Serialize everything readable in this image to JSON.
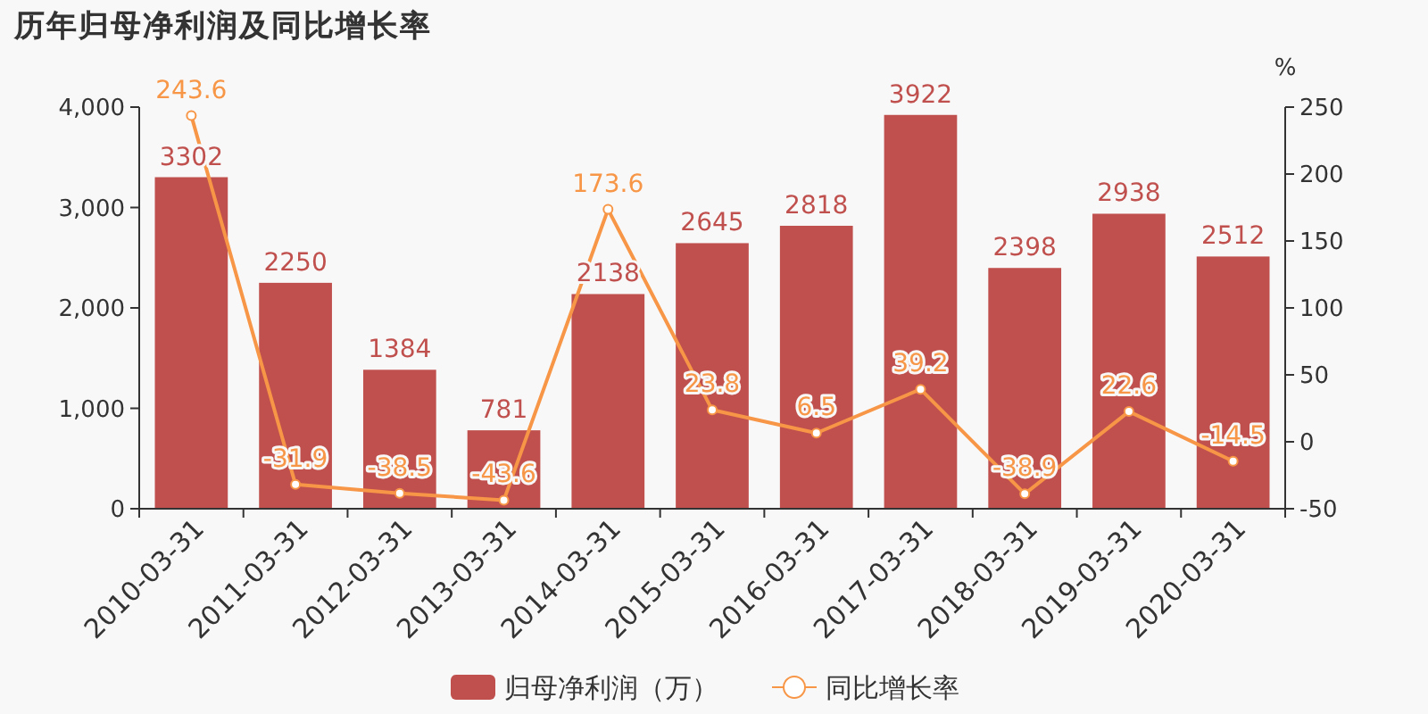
{
  "chart_data": {
    "type": "bar",
    "title": "历年归母净利润及同比增长率",
    "y2label": "%",
    "categories": [
      "2010-03-31",
      "2011-03-31",
      "2012-03-31",
      "2013-03-31",
      "2014-03-31",
      "2015-03-31",
      "2016-03-31",
      "2017-03-31",
      "2018-03-31",
      "2019-03-31",
      "2020-03-31"
    ],
    "series": [
      {
        "name": "归母净利润（万）",
        "color": "#c0504d",
        "values": [
          3302,
          2250,
          1384,
          781,
          2138,
          2645,
          2818,
          3922,
          2398,
          2938,
          2512
        ]
      },
      {
        "name": "同比增长率",
        "type": "line",
        "axis": "y2",
        "color": "#f79646",
        "values": [
          243.6,
          -31.9,
          -38.5,
          -43.6,
          173.6,
          23.8,
          6.5,
          39.2,
          -38.9,
          22.6,
          -14.5
        ]
      }
    ],
    "ylim": [
      0,
      4000
    ],
    "yticks": [
      0,
      {
        "value": 1000,
        "label": "1,000"
      },
      {
        "value": 2000,
        "label": "2,000"
      },
      {
        "value": 3000,
        "label": "3,000"
      },
      {
        "value": 4000,
        "label": "4,000"
      }
    ],
    "y2lim": [
      -50,
      250
    ],
    "y2ticks": [
      -50,
      0,
      50,
      100,
      150,
      200,
      250
    ],
    "data_labels": true,
    "legend": "bottom",
    "marker": "circle",
    "grid": false
  }
}
